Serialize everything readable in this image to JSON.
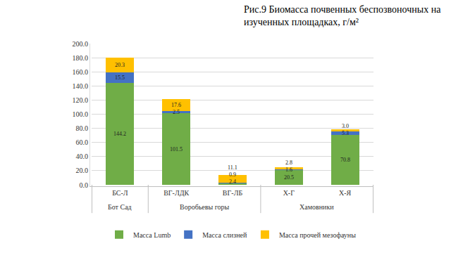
{
  "chart_data": {
    "type": "bar",
    "title": "Рис.9 Биомасса почвенных беспозвоночных на\nизученных площадках, г/м²",
    "categories": [
      "БС-Л",
      "ВГ-ЛДК",
      "ВГ-ЛБ",
      "Х-Г",
      "Х-Я"
    ],
    "groups": [
      "Бот Сад",
      "Воробьевы горы",
      "Воробьевы горы",
      "Хамовники",
      "Хамовники"
    ],
    "series": [
      {
        "name": "Масса Lumb",
        "color": "#70ad47",
        "values": [
          144.2,
          101.5,
          2.4,
          20.5,
          70.8
        ],
        "value_labels": [
          "144.2",
          "101.5",
          "2.4",
          "20.5",
          "70.8"
        ]
      },
      {
        "name": "Масса слизней",
        "color": "#4472c4",
        "values": [
          15.5,
          2.5,
          0.9,
          1.6,
          5.3
        ],
        "value_labels": [
          "15.5",
          "2.5",
          "0.9",
          "1.6",
          "5.3"
        ]
      },
      {
        "name": "Масса прочей мезофауны",
        "color": "#ffc000",
        "values": [
          20.3,
          17.6,
          11.1,
          2.8,
          3.0
        ],
        "value_labels": [
          "20.3",
          "17.6",
          "11.1",
          "2.8",
          "3.0"
        ]
      }
    ],
    "stacked": true,
    "data_labels": true,
    "ylim": [
      0,
      200
    ],
    "yticks": [
      {
        "value": 0,
        "label": "0.0"
      },
      {
        "value": 20,
        "label": "20.0"
      },
      {
        "value": 40,
        "label": "40.0"
      },
      {
        "value": 60,
        "label": "60.0"
      },
      {
        "value": 80,
        "label": "80.0"
      },
      {
        "value": 100,
        "label": "100.0"
      },
      {
        "value": 120,
        "label": "120.0"
      },
      {
        "value": 140,
        "label": "140.0"
      },
      {
        "value": 160,
        "label": "160.0"
      },
      {
        "value": 180,
        "label": "180.0"
      },
      {
        "value": 200,
        "label": "200.0"
      }
    ],
    "grid": true,
    "legend": "bottom"
  }
}
